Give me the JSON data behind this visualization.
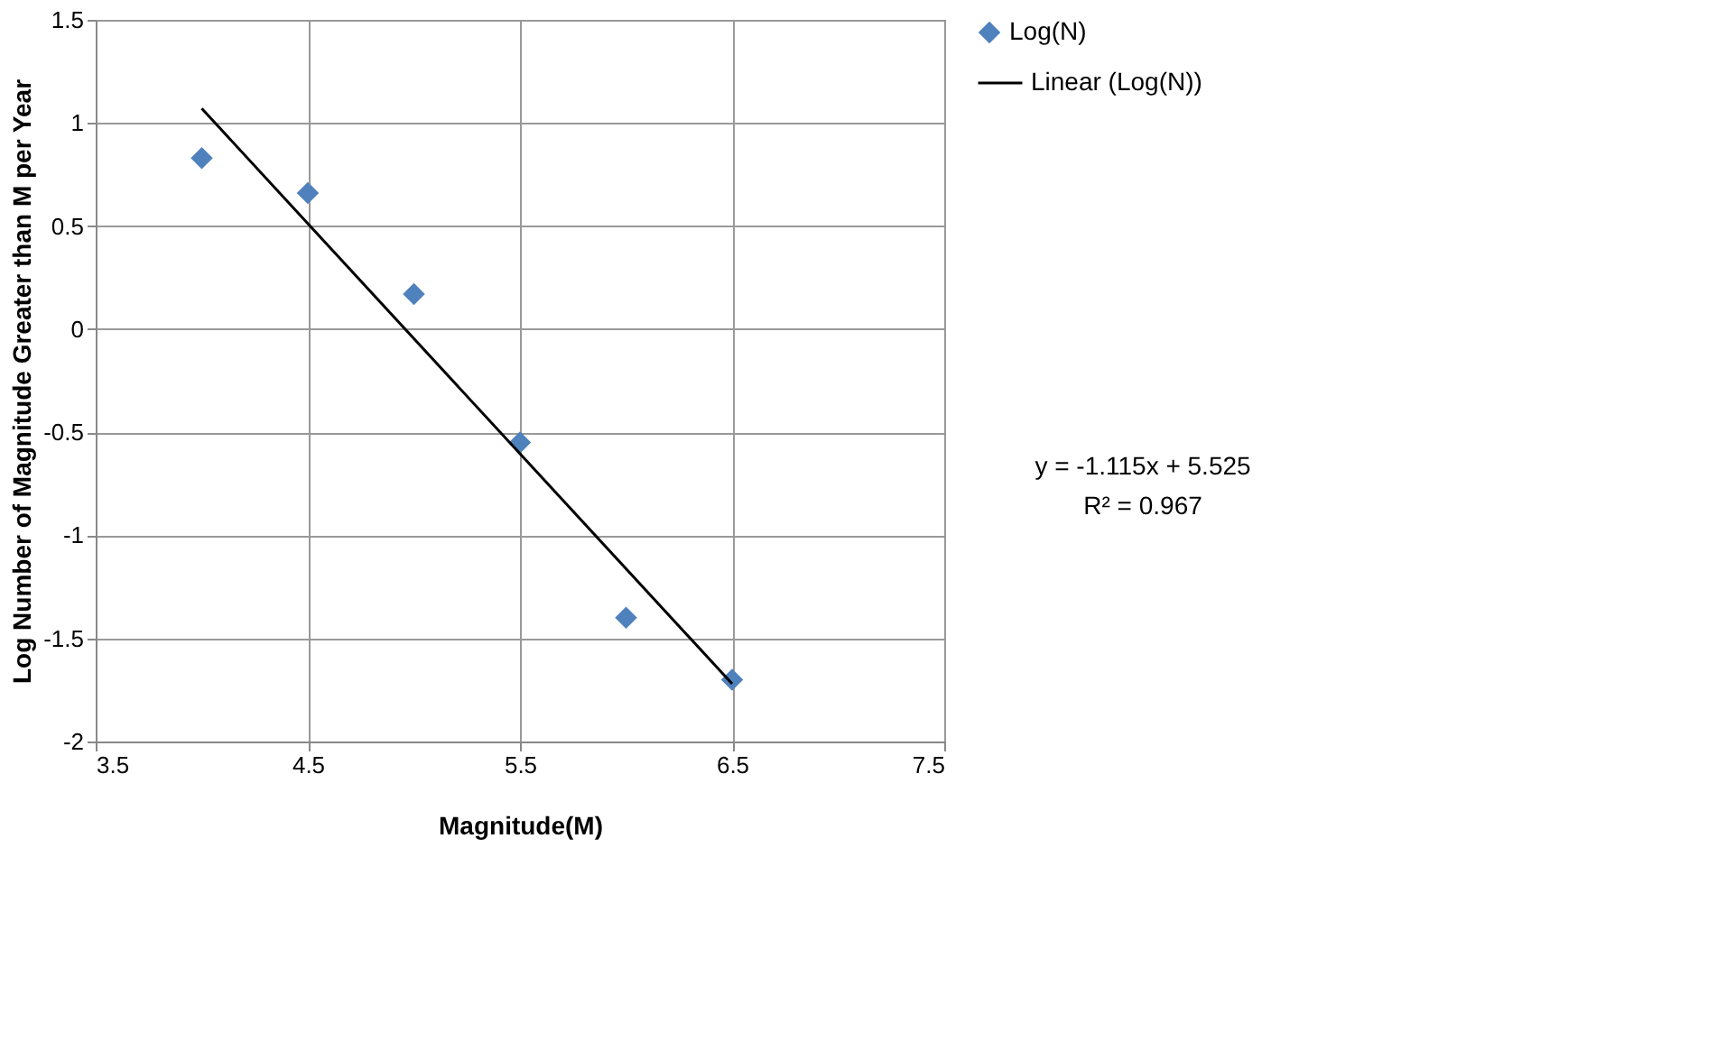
{
  "chart_data": {
    "type": "scatter",
    "xlabel": "Magnitude(M)",
    "ylabel": "Log Number of Magnitude Greater than M per Year",
    "xlim": [
      3.5,
      7.5
    ],
    "xticks": [
      3.5,
      4.5,
      5.5,
      6.5,
      7.5
    ],
    "ylim": [
      -2,
      1.5
    ],
    "yticks": [
      -2,
      -1.5,
      -1,
      -0.5,
      0,
      0.5,
      1,
      1.5
    ],
    "grid": true,
    "legend": "right",
    "series": [
      {
        "name": "Log(N)",
        "marker": "diamond",
        "color": "#4f81bd",
        "x": [
          4,
          4.5,
          5,
          5.5,
          6,
          6.5
        ],
        "values": [
          0.83,
          0.66,
          0.17,
          -0.55,
          -1.4,
          -1.7
        ]
      },
      {
        "name": "Linear (Log(N))",
        "type": "line",
        "color": "#000000",
        "x": [
          4,
          6.5
        ],
        "values": [
          1.07,
          -1.72
        ]
      }
    ],
    "annotations": [
      "y = -1.115x + 5.525",
      "R² = 0.967"
    ]
  }
}
